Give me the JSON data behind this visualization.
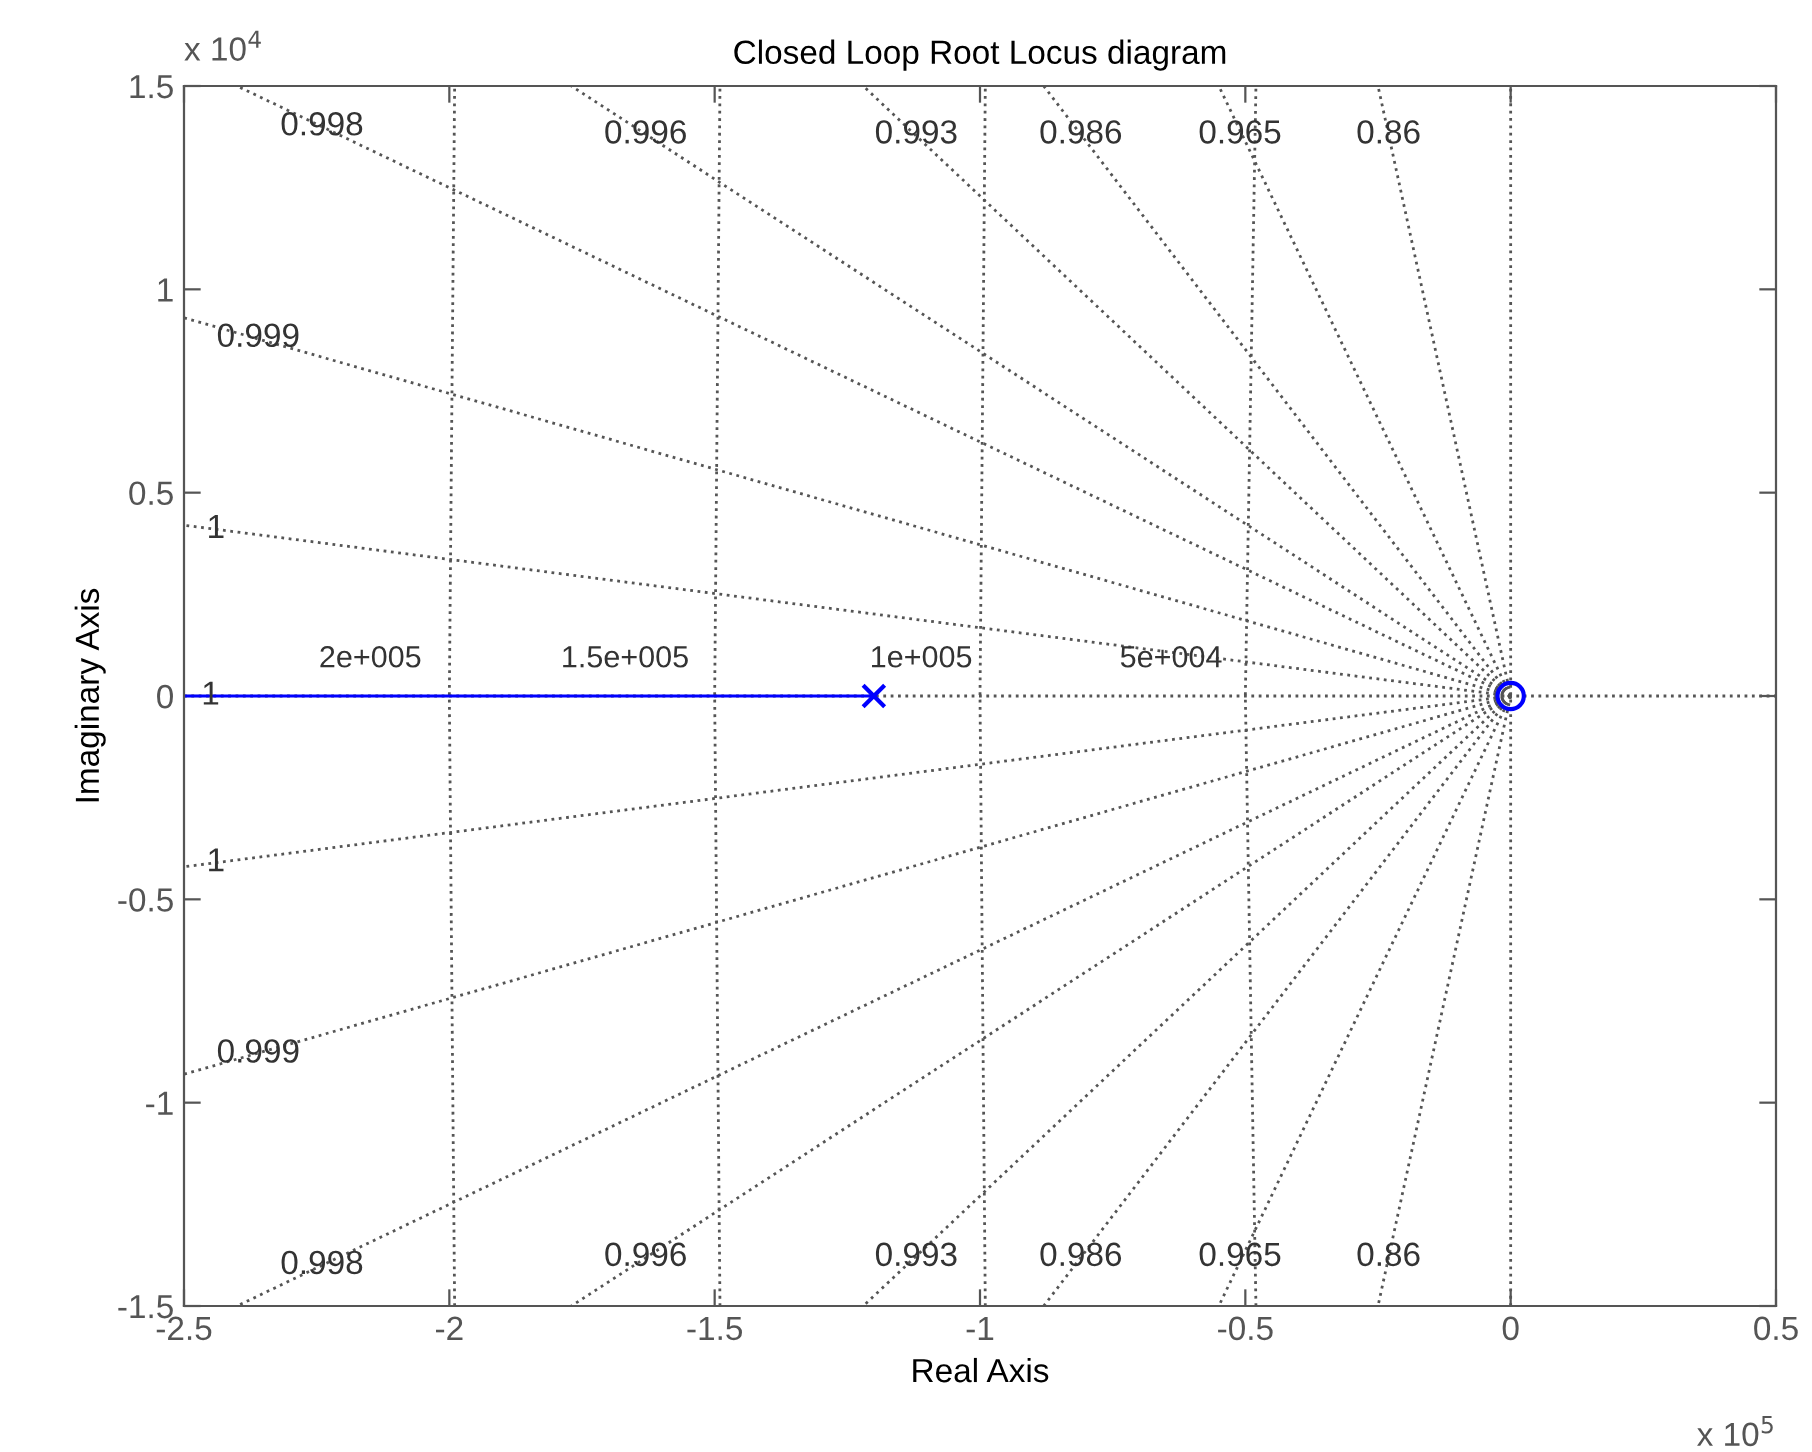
{
  "chart_data": {
    "type": "line",
    "title": "Closed Loop Root Locus diagram",
    "xlabel": "Real Axis",
    "ylabel": "Imaginary Axis",
    "xlim": [
      -2.5,
      0.5
    ],
    "ylim": [
      -1.5,
      1.5
    ],
    "xticks": [
      -2.5,
      -2,
      -1.5,
      -1,
      -0.5,
      0,
      0.5
    ],
    "yticks": [
      -1.5,
      -1,
      -0.5,
      0,
      0.5,
      1,
      1.5
    ],
    "grid": false,
    "legend": false,
    "ref_lines": [
      {
        "axis": "x",
        "value": 0,
        "color": "#555555",
        "line_style": "dotted"
      }
    ],
    "series": [
      {
        "color": "#555555",
        "line_style": "dotted",
        "x": [
          -2.5,
          0.5
        ],
        "values": [
          0,
          0
        ]
      },
      {
        "color": "#555555",
        "line_style": "dotted",
        "x": [
          0,
          -2.5
        ],
        "values": [
          0,
          0.42
        ]
      },
      {
        "color": "#555555",
        "line_style": "dotted",
        "x": [
          0,
          -2.5
        ],
        "values": [
          0,
          0.93
        ]
      },
      {
        "color": "#555555",
        "line_style": "dotted",
        "x": [
          0,
          -2.4
        ],
        "values": [
          0,
          1.5
        ]
      },
      {
        "color": "#555555",
        "line_style": "dotted",
        "x": [
          0,
          -1.77
        ],
        "values": [
          0,
          1.5
        ]
      },
      {
        "color": "#555555",
        "line_style": "dotted",
        "x": [
          0,
          -1.22
        ],
        "values": [
          0,
          1.5
        ]
      },
      {
        "color": "#555555",
        "line_style": "dotted",
        "x": [
          0,
          -0.88
        ],
        "values": [
          0,
          1.5
        ]
      },
      {
        "color": "#555555",
        "line_style": "dotted",
        "x": [
          0,
          -0.55
        ],
        "values": [
          0,
          1.5
        ]
      },
      {
        "color": "#555555",
        "line_style": "dotted",
        "x": [
          0,
          -0.25
        ],
        "values": [
          0,
          1.5
        ]
      },
      {
        "color": "#555555",
        "line_style": "dotted",
        "x": [
          0,
          -2.5
        ],
        "values": [
          0,
          -0.42
        ]
      },
      {
        "color": "#555555",
        "line_style": "dotted",
        "x": [
          0,
          -2.5
        ],
        "values": [
          0,
          -0.93
        ]
      },
      {
        "color": "#555555",
        "line_style": "dotted",
        "x": [
          0,
          -2.4
        ],
        "values": [
          0,
          -1.5
        ]
      },
      {
        "color": "#555555",
        "line_style": "dotted",
        "x": [
          0,
          -1.77
        ],
        "values": [
          0,
          -1.5
        ]
      },
      {
        "color": "#555555",
        "line_style": "dotted",
        "x": [
          0,
          -1.22
        ],
        "values": [
          0,
          -1.5
        ]
      },
      {
        "color": "#555555",
        "line_style": "dotted",
        "x": [
          0,
          -0.88
        ],
        "values": [
          0,
          -1.5
        ]
      },
      {
        "color": "#555555",
        "line_style": "dotted",
        "x": [
          0,
          -0.55
        ],
        "values": [
          0,
          -1.5
        ]
      },
      {
        "color": "#555555",
        "line_style": "dotted",
        "x": [
          0,
          -0.25
        ],
        "values": [
          0,
          -1.5
        ]
      },
      {
        "color": "#555555",
        "line_style": "dotted",
        "x": [
          -1.99,
          -2,
          -1.99
        ],
        "values": [
          -1.5,
          0,
          1.5
        ]
      },
      {
        "color": "#555555",
        "line_style": "dotted",
        "x": [
          -1.49,
          -1.5,
          -1.49
        ],
        "values": [
          -1.5,
          0,
          1.5
        ]
      },
      {
        "color": "#555555",
        "line_style": "dotted",
        "x": [
          -0.99,
          -1,
          -0.99
        ],
        "values": [
          -1.5,
          0,
          1.5
        ]
      },
      {
        "color": "#555555",
        "line_style": "dotted",
        "x": [
          -0.48,
          -0.5,
          -0.48
        ],
        "values": [
          -1.5,
          0,
          1.5
        ]
      },
      {
        "color": "#0000ff",
        "line_style": "solid",
        "x": [
          -2.5,
          -1.2
        ],
        "values": [
          0,
          0
        ]
      },
      {
        "type": "scatter",
        "color": "#0000ff",
        "marker": "cross",
        "x": [
          -1.2
        ],
        "values": [
          0
        ]
      },
      {
        "type": "scatter",
        "color": "#0000ff",
        "marker": "circle",
        "x": [
          0
        ],
        "values": [
          0
        ]
      }
    ],
    "annotations": [
      "x 10$^{4}$",
      "x 10$^{5}$",
      "2e+005",
      "1.5e+005",
      "1e+005",
      "5e+004",
      {
        "text": "0.998",
        "x": -2.24,
        "y": 1.4
      },
      {
        "text": "0.996",
        "x": -1.63,
        "y": 1.38
      },
      {
        "text": "0.993",
        "x": -1.12,
        "y": 1.38
      },
      {
        "text": "0.986",
        "x": -0.81,
        "y": 1.38
      },
      {
        "text": "0.965",
        "x": -0.51,
        "y": 1.38
      },
      {
        "text": "0.86",
        "x": -0.23,
        "y": 1.38
      },
      {
        "text": "0.999",
        "x": -2.36,
        "y": 0.88
      },
      {
        "text": "1",
        "x": -2.44,
        "y": 0.41
      },
      {
        "text": "1",
        "x": -2.45,
        "y": 0
      },
      {
        "text": "1",
        "x": -2.44,
        "y": -0.41
      },
      {
        "text": "0.999",
        "x": -2.36,
        "y": -0.88
      },
      {
        "text": "0.998",
        "x": -2.24,
        "y": -1.4
      },
      {
        "text": "0.996",
        "x": -1.63,
        "y": -1.38
      },
      {
        "text": "0.993",
        "x": -1.12,
        "y": -1.38
      },
      {
        "text": "0.986",
        "x": -0.81,
        "y": -1.38
      },
      {
        "text": "0.965",
        "x": -0.51,
        "y": -1.38
      },
      {
        "text": "0.86",
        "x": -0.23,
        "y": -1.38
      }
    ]
  }
}
